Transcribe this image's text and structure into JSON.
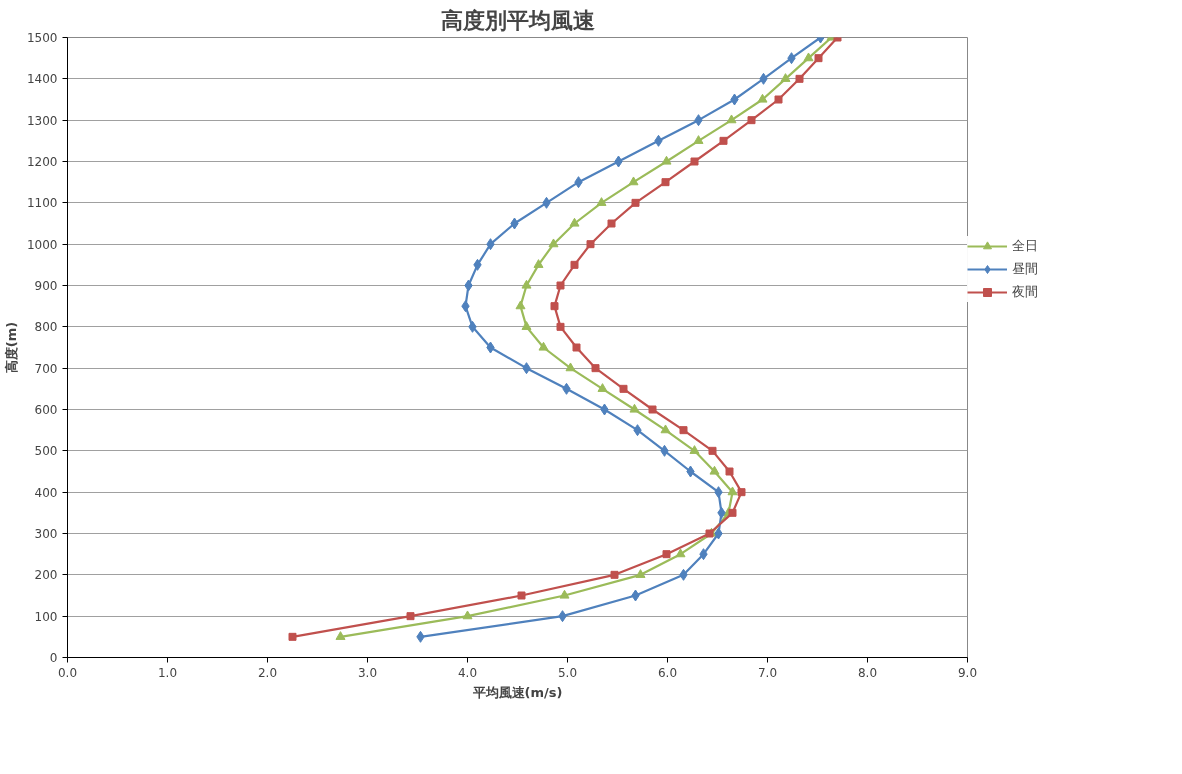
{
  "chart_data": {
    "type": "line",
    "title": "高度別平均風速",
    "xlabel": "平均風速(m/s)",
    "ylabel": "高度(m)",
    "series": [
      {
        "name": "全日",
        "color": "#9bbb59",
        "marker": "triangle",
        "values": [
          50,
          100,
          150,
          200,
          250,
          300,
          350,
          400,
          450,
          500,
          550,
          600,
          650,
          700,
          750,
          800,
          850,
          900,
          950,
          1000,
          1050,
          1100,
          1150,
          1200,
          1250,
          1300,
          1350,
          1400,
          1450,
          1500
        ],
        "x": [
          2.73,
          4.0,
          4.97,
          5.73,
          6.13,
          6.44,
          6.61,
          6.65,
          6.47,
          6.27,
          5.98,
          5.67,
          5.35,
          5.03,
          4.76,
          4.59,
          4.53,
          4.59,
          4.71,
          4.86,
          5.07,
          5.34,
          5.66,
          5.99,
          6.31,
          6.64,
          6.95,
          7.18,
          7.41,
          7.64
        ]
      },
      {
        "name": "昼間",
        "color": "#4f81bd",
        "marker": "diamond",
        "values": [
          50,
          100,
          150,
          200,
          250,
          300,
          350,
          400,
          450,
          500,
          550,
          600,
          650,
          700,
          750,
          800,
          850,
          900,
          950,
          1000,
          1050,
          1100,
          1150,
          1200,
          1250,
          1300,
          1350,
          1400,
          1450,
          1500
        ],
        "x": [
          3.53,
          4.95,
          5.68,
          6.16,
          6.36,
          6.51,
          6.54,
          6.51,
          6.23,
          5.97,
          5.7,
          5.37,
          4.99,
          4.59,
          4.23,
          4.05,
          3.98,
          4.01,
          4.1,
          4.23,
          4.47,
          4.79,
          5.11,
          5.51,
          5.91,
          6.31,
          6.67,
          6.96,
          7.24,
          7.53
        ]
      },
      {
        "name": "夜間",
        "color": "#c0504d",
        "marker": "square",
        "values": [
          50,
          100,
          150,
          200,
          250,
          300,
          350,
          400,
          450,
          500,
          550,
          600,
          650,
          700,
          750,
          800,
          850,
          900,
          950,
          1000,
          1050,
          1100,
          1150,
          1200,
          1250,
          1300,
          1350,
          1400,
          1450,
          1500
        ],
        "x": [
          2.25,
          3.43,
          4.54,
          5.47,
          5.99,
          6.42,
          6.65,
          6.74,
          6.62,
          6.45,
          6.16,
          5.85,
          5.56,
          5.28,
          5.09,
          4.93,
          4.87,
          4.93,
          5.07,
          5.23,
          5.44,
          5.68,
          5.98,
          6.27,
          6.56,
          6.84,
          7.11,
          7.32,
          7.51,
          7.7
        ]
      }
    ],
    "xlim": [
      0,
      9
    ],
    "xticks": [
      {
        "value": 0,
        "label": "0.0"
      },
      {
        "value": 1,
        "label": "1.0"
      },
      {
        "value": 2,
        "label": "2.0"
      },
      {
        "value": 3,
        "label": "3.0"
      },
      {
        "value": 4,
        "label": "4.0"
      },
      {
        "value": 5,
        "label": "5.0"
      },
      {
        "value": 6,
        "label": "6.0"
      },
      {
        "value": 7,
        "label": "7.0"
      },
      {
        "value": 8,
        "label": "8.0"
      },
      {
        "value": 9,
        "label": "9.0"
      }
    ],
    "ylim": [
      0,
      1500
    ],
    "yticks": [
      0,
      100,
      200,
      300,
      400,
      500,
      600,
      700,
      800,
      900,
      1000,
      1100,
      1200,
      1300,
      1400,
      1500
    ],
    "grid": "y",
    "legend": "right",
    "line_style": "solid"
  }
}
